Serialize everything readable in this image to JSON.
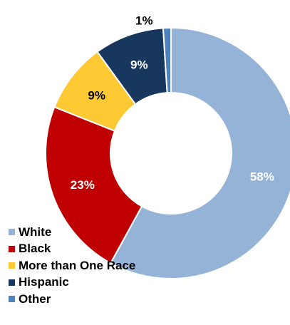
{
  "chart_data": {
    "type": "pie",
    "donut": true,
    "title": "",
    "categories": [
      "White",
      "Black",
      "More than One Race",
      "Hispanic",
      "Other"
    ],
    "values": [
      58,
      23,
      9,
      9,
      1
    ],
    "labels": [
      "58%",
      "23%",
      "9%",
      "9%",
      "1%"
    ],
    "colors": [
      "#95B3D7",
      "#C00000",
      "#FFC933",
      "#17375E",
      "#4F81BD"
    ],
    "label_colors": [
      "#ffffff",
      "#ffffff",
      "#000000",
      "#ffffff",
      "#000000"
    ],
    "start_angle_deg": 0,
    "direction": "clockwise",
    "legend_position": "bottom-left"
  }
}
